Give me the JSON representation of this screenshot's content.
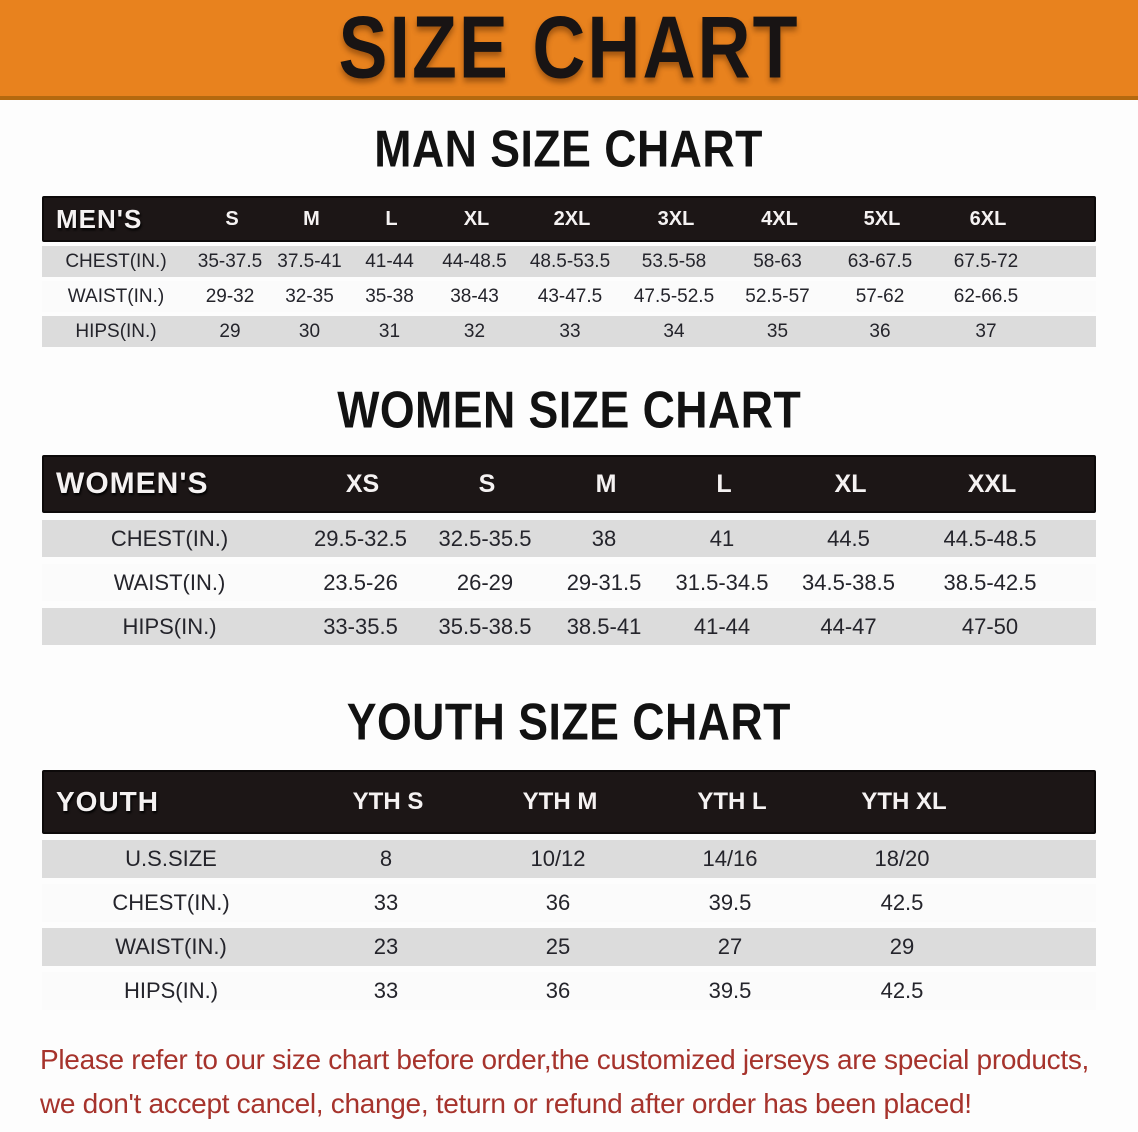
{
  "banner": {
    "title": "SIZE CHART",
    "bg_color": "#E8821E"
  },
  "colors": {
    "banner_orange": "#E8821E",
    "table_header_black": "#1C1616",
    "row_gray": "#DCDCDC",
    "disclaimer_red": "#A6332C"
  },
  "chart_data": [
    {
      "type": "table",
      "title": "MAN SIZE CHART",
      "header": [
        "MEN'S",
        "S",
        "M",
        "L",
        "XL",
        "2XL",
        "3XL",
        "4XL",
        "5XL",
        "6XL"
      ],
      "rows": [
        [
          "CHEST(IN.)",
          "35-37.5",
          "37.5-41",
          "41-44",
          "44-48.5",
          "48.5-53.5",
          "53.5-58",
          "58-63",
          "63-67.5",
          "67.5-72"
        ],
        [
          "WAIST(IN.)",
          "29-32",
          "32-35",
          "35-38",
          "38-43",
          "43-47.5",
          "47.5-52.5",
          "52.5-57",
          "57-62",
          "62-66.5"
        ],
        [
          "HIPS(IN.)",
          "29",
          "30",
          "31",
          "32",
          "33",
          "34",
          "35",
          "36",
          "37"
        ]
      ]
    },
    {
      "type": "table",
      "title": "WOMEN SIZE CHART",
      "header": [
        "WOMEN'S",
        "XS",
        "S",
        "M",
        "L",
        "XL",
        "XXL"
      ],
      "rows": [
        [
          "CHEST(IN.)",
          "29.5-32.5",
          "32.5-35.5",
          "38",
          "41",
          "44.5",
          "44.5-48.5"
        ],
        [
          "WAIST(IN.)",
          "23.5-26",
          "26-29",
          "29-31.5",
          "31.5-34.5",
          "34.5-38.5",
          "38.5-42.5"
        ],
        [
          "HIPS(IN.)",
          "33-35.5",
          "35.5-38.5",
          "38.5-41",
          "41-44",
          "44-47",
          "47-50"
        ]
      ]
    },
    {
      "type": "table",
      "title": "YOUTH SIZE CHART",
      "header": [
        "YOUTH",
        "YTH S",
        "YTH M",
        "YTH L",
        "YTH XL"
      ],
      "rows": [
        [
          "U.S.SIZE",
          "8",
          "10/12",
          "14/16",
          "18/20"
        ],
        [
          "CHEST(IN.)",
          "33",
          "36",
          "39.5",
          "42.5"
        ],
        [
          "WAIST(IN.)",
          "23",
          "25",
          "27",
          "29"
        ],
        [
          "HIPS(IN.)",
          "33",
          "36",
          "39.5",
          "42.5"
        ]
      ]
    }
  ],
  "disclaimer": {
    "line1": "Please refer to our size chart before order,the customized jerseys are special products,",
    "line2": "we don't accept cancel, change, teturn or refund after order has been placed!"
  }
}
